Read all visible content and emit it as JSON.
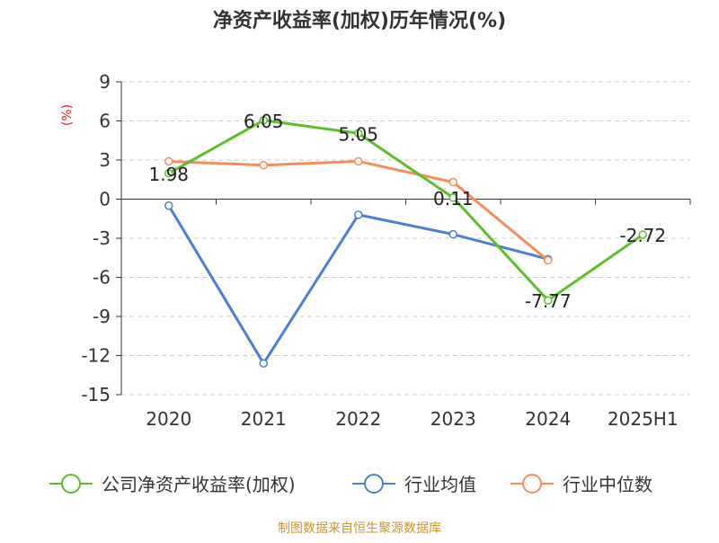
{
  "chart_data": {
    "type": "line",
    "title": "净资产收益率(加权)历年情况(%)",
    "ylabel": "(%)",
    "xlabel": "",
    "categories": [
      "2020",
      "2021",
      "2022",
      "2023",
      "2024",
      "2025H1"
    ],
    "yticks": [
      9,
      6,
      3,
      0,
      -3,
      -6,
      -9,
      -12,
      -15
    ],
    "ylim": [
      -15,
      9
    ],
    "grid": true,
    "legend_position": "bottom",
    "series": [
      {
        "name": "公司净资产收益率(加权)",
        "color": "#5cbf2a",
        "values": [
          1.98,
          6.05,
          5.05,
          0.11,
          -7.77,
          -2.72
        ],
        "labels": [
          "1.98",
          "6.05",
          "5.05",
          "0.11",
          "-7.77",
          "-2.72"
        ]
      },
      {
        "name": "行业均值",
        "color": "#4a7fd4",
        "values": [
          -0.5,
          -12.6,
          -1.2,
          -2.7,
          -4.6,
          null
        ]
      },
      {
        "name": "行业中位数",
        "color": "#f78d5c",
        "values": [
          2.9,
          2.6,
          2.9,
          1.3,
          -4.7,
          null
        ]
      }
    ],
    "ylabel_color": "#e02020"
  },
  "footer": {
    "source": "制图数据来自恒生聚源数据库",
    "source_color": "#c8962e"
  }
}
